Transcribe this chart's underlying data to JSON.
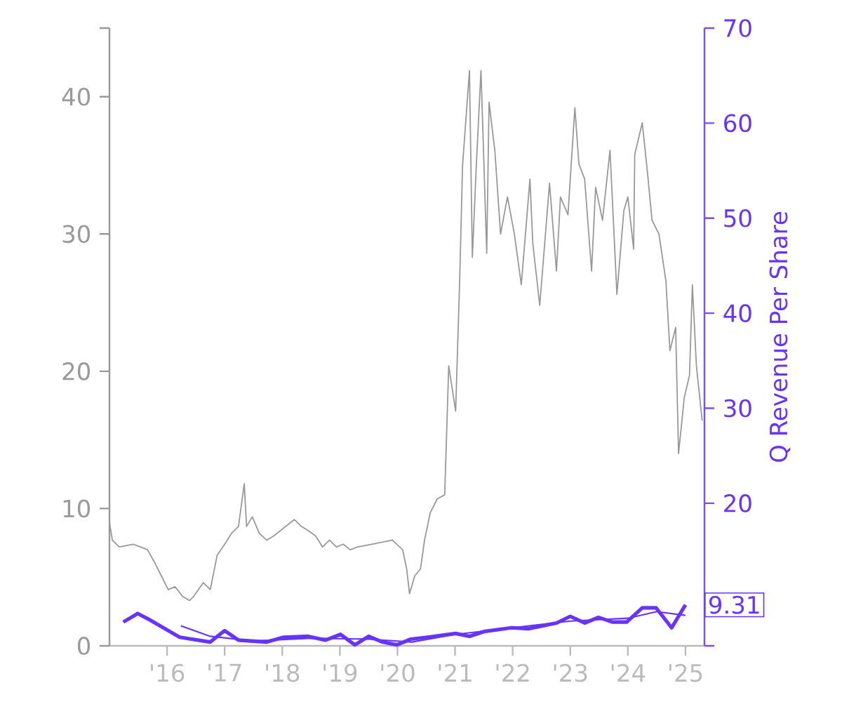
{
  "chart_data": {
    "type": "line",
    "y2label": "Q Revenue Per Share",
    "xlim": [
      2015,
      2025.33
    ],
    "xticks": [
      {
        "value": 2016,
        "label": "'16"
      },
      {
        "value": 2017,
        "label": "'17"
      },
      {
        "value": 2018,
        "label": "'18"
      },
      {
        "value": 2019,
        "label": "'19"
      },
      {
        "value": 2020,
        "label": "'20"
      },
      {
        "value": 2021,
        "label": "'21"
      },
      {
        "value": 2022,
        "label": "'22"
      },
      {
        "value": 2023,
        "label": "'23"
      },
      {
        "value": 2024,
        "label": "'24"
      },
      {
        "value": 2025,
        "label": "'25"
      }
    ],
    "ylim": [
      0,
      45
    ],
    "yticks": [
      0,
      10,
      20,
      30,
      40,
      {
        "value": 45,
        "label": null
      }
    ],
    "y2lim": [
      5,
      70
    ],
    "y2ticks": [
      {
        "value": 5,
        "label": null
      },
      20,
      30,
      40,
      50,
      60,
      70
    ],
    "grid": false,
    "marker": "none",
    "line_style": "solid",
    "series": [
      {
        "color": "#999999",
        "x": [
          2015.0,
          2015.05,
          2015.17,
          2015.41,
          2015.54,
          2015.66,
          2015.78,
          2015.9,
          2016.02,
          2016.14,
          2016.27,
          2016.39,
          2016.46,
          2016.63,
          2016.75,
          2016.87,
          2017.0,
          2017.12,
          2017.24,
          2017.34,
          2017.38,
          2017.48,
          2017.6,
          2017.73,
          2017.85,
          2017.97,
          2018.21,
          2018.33,
          2018.45,
          2018.58,
          2018.7,
          2018.82,
          2018.94,
          2019.06,
          2019.18,
          2019.31,
          2019.55,
          2019.91,
          2020.09,
          2020.16,
          2020.21,
          2020.3,
          2020.4,
          2020.47,
          2020.57,
          2020.69,
          2020.82,
          2020.89,
          2021.01,
          2021.08,
          2021.13,
          2021.25,
          2021.3,
          2021.37,
          2021.45,
          2021.55,
          2021.59,
          2021.69,
          2021.79,
          2021.91,
          2022.03,
          2022.15,
          2022.3,
          2022.35,
          2022.47,
          2022.64,
          2022.76,
          2022.83,
          2022.96,
          2023.08,
          2023.15,
          2023.25,
          2023.37,
          2023.44,
          2023.56,
          2023.69,
          2023.81,
          2023.93,
          2024.0,
          2024.1,
          2024.12,
          2024.25,
          2024.34,
          2024.42,
          2024.54,
          2024.66,
          2024.73,
          2024.83,
          2024.88,
          2024.98,
          2025.07,
          2025.12,
          2025.19,
          2025.29
        ],
        "values": [
          9.0,
          7.7,
          7.2,
          7.4,
          7.2,
          7.0,
          6.1,
          5.1,
          4.1,
          4.3,
          3.6,
          3.3,
          3.6,
          4.6,
          4.1,
          6.6,
          7.4,
          8.2,
          8.7,
          11.8,
          8.7,
          9.4,
          8.2,
          7.7,
          8.0,
          8.4,
          9.2,
          8.7,
          8.4,
          8.0,
          7.2,
          7.7,
          7.2,
          7.4,
          7.0,
          7.2,
          7.4,
          7.7,
          7.0,
          5.6,
          3.8,
          5.1,
          5.6,
          7.7,
          9.7,
          10.7,
          11.0,
          20.4,
          17.1,
          26.6,
          35.0,
          41.9,
          28.3,
          35.1,
          41.9,
          28.6,
          39.6,
          36.1,
          30.0,
          32.7,
          30.0,
          26.3,
          34.0,
          29.3,
          24.8,
          33.7,
          27.3,
          32.7,
          31.4,
          39.2,
          35.1,
          34.0,
          27.3,
          33.4,
          31.0,
          36.1,
          25.6,
          31.7,
          32.7,
          28.9,
          35.8,
          38.1,
          34.5,
          31.0,
          30.0,
          26.6,
          21.5,
          23.2,
          14.0,
          18.1,
          19.7,
          26.3,
          20.4,
          16.4
        ]
      },
      {
        "color": "#6633ff",
        "axis": "y2",
        "x": [
          2015.24,
          2015.49,
          2015.71,
          2016.22,
          2016.75,
          2017.0,
          2017.24,
          2017.73,
          2018.02,
          2018.45,
          2018.75,
          2019.01,
          2019.26,
          2019.5,
          2019.74,
          2019.99,
          2020.23,
          2020.52,
          2021.01,
          2021.25,
          2021.5,
          2021.98,
          2022.27,
          2022.76,
          2023.0,
          2023.25,
          2023.49,
          2023.73,
          2023.98,
          2024.25,
          2024.49,
          2024.76,
          2025.0
        ],
        "values": [
          7.5,
          8.4,
          7.7,
          5.9,
          5.4,
          6.6,
          5.6,
          5.4,
          5.9,
          6.0,
          5.6,
          6.2,
          5.1,
          6.0,
          5.4,
          5.1,
          5.7,
          5.9,
          6.3,
          6.0,
          6.5,
          6.9,
          6.8,
          7.4,
          8.1,
          7.4,
          8.0,
          7.5,
          7.5,
          9.0,
          9.0,
          6.9,
          9.31
        ],
        "value_labels": [
          null,
          null,
          null,
          null,
          null,
          null,
          null,
          null,
          null,
          null,
          null,
          null,
          null,
          null,
          null,
          null,
          null,
          null,
          null,
          null,
          null,
          null,
          null,
          null,
          null,
          null,
          null,
          null,
          null,
          null,
          null,
          null,
          "9.31"
        ]
      },
      {
        "color": "#6633ff",
        "axis": "y2",
        "x": [
          2016.24,
          2016.75,
          2017.5,
          2018.5,
          2019.5,
          2020.25,
          2021.0,
          2022.0,
          2023.0,
          2024.0,
          2024.5,
          2025.0
        ],
        "values": [
          7.1,
          6.0,
          5.5,
          5.8,
          5.7,
          5.4,
          6.2,
          6.9,
          7.6,
          7.9,
          8.6,
          8.2
        ]
      }
    ]
  }
}
